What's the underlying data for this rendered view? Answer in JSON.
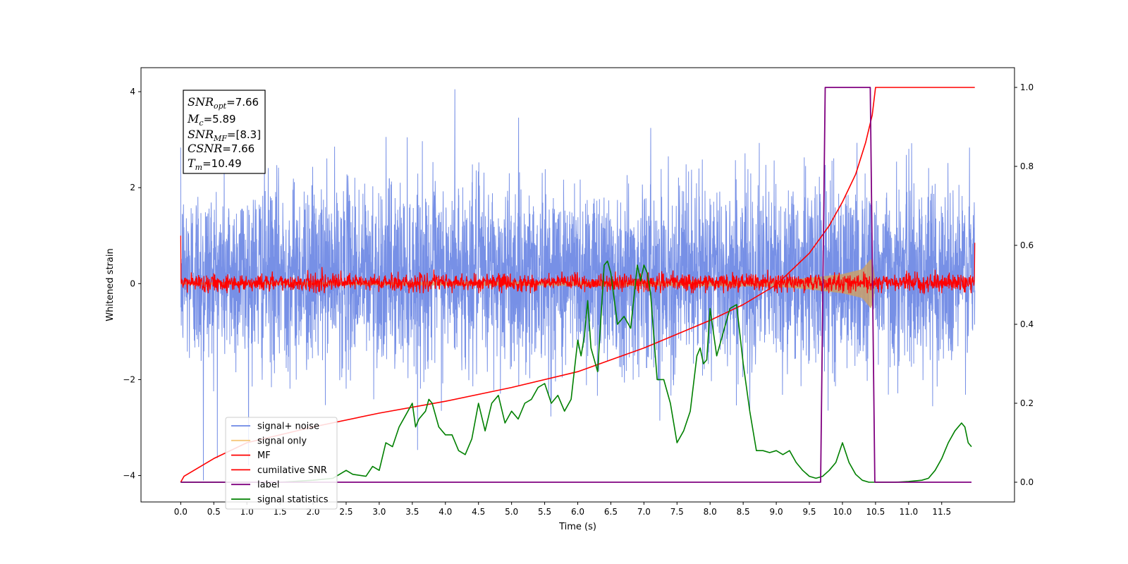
{
  "chart_data": {
    "type": "line",
    "xlabel": "Time (s)",
    "ylabel": "Whitened strain",
    "xlim": [
      -0.6,
      12.6
    ],
    "ylim": [
      -4.55,
      4.5
    ],
    "y2lim": [
      -0.05,
      1.05
    ],
    "x_ticks": [
      "0.0",
      "0.5",
      "1.0",
      "1.5",
      "2.0",
      "2.5",
      "3.0",
      "3.5",
      "4.0",
      "4.5",
      "5.0",
      "5.5",
      "6.0",
      "6.5",
      "7.0",
      "7.5",
      "8.0",
      "8.5",
      "9.0",
      "9.5",
      "10.0",
      "10.5",
      "11.0",
      "11.5"
    ],
    "y_ticks": [
      "4",
      "2",
      "0",
      "−2",
      "−4"
    ],
    "y_tick_values": [
      4,
      2,
      0,
      -2,
      -4
    ],
    "y2_ticks": [
      "1.0",
      "0.8",
      "0.6",
      "0.4",
      "0.2",
      "0.0"
    ],
    "y2_tick_values": [
      1.0,
      0.8,
      0.6,
      0.4,
      0.2,
      0.0
    ],
    "info_box": [
      {
        "base": "SNR",
        "sub": "opt",
        "value": "=7.66"
      },
      {
        "base": "M",
        "sub": "c",
        "value": "=5.89"
      },
      {
        "base": "SNR",
        "sub": "MF",
        "value": "=[8.3]"
      },
      {
        "base": "CSNR",
        "sub": "",
        "value": "=7.66"
      },
      {
        "base": "T",
        "sub": "m",
        "value": "=10.49"
      }
    ],
    "legend": {
      "placement": "lower-left",
      "entries": [
        {
          "label": "signal+ noise",
          "color": "#6b87e4"
        },
        {
          "label": "signal only",
          "color": "#f5c77a"
        },
        {
          "label": "MF",
          "color": "#ff0000"
        },
        {
          "label": "cumilative SNR",
          "color": "#ff0000"
        },
        {
          "label": "label",
          "color": "#800080"
        },
        {
          "label": "signal statistics",
          "color": "#008000"
        }
      ]
    },
    "series": [
      {
        "name": "signal+ noise",
        "color": "#6b87e4",
        "axis": "left",
        "x_range": [
          0.0,
          12.0
        ],
        "typical_range": [
          -2.6,
          2.6
        ],
        "max": 4.05,
        "min": -4.1
      },
      {
        "name": "signal only",
        "color": "#c8a06a",
        "axis": "left",
        "x_range": [
          0.0,
          10.5
        ],
        "envelope": {
          "x": [
            0.0,
            9.0,
            9.5,
            10.0,
            10.3,
            10.45,
            10.5
          ],
          "amp": [
            0.02,
            0.06,
            0.12,
            0.2,
            0.3,
            0.55,
            0.0
          ]
        }
      },
      {
        "name": "MF",
        "color": "#ff0000",
        "axis": "left",
        "x_range": [
          0.0,
          12.0
        ],
        "typical_range": [
          -0.15,
          0.3
        ],
        "start_value": 1.0,
        "end_value": 0.85
      },
      {
        "name": "cumilative SNR",
        "color": "#ff0000",
        "axis": "right",
        "x": [
          0.0,
          0.05,
          0.5,
          1.0,
          2.0,
          3.0,
          4.0,
          5.0,
          6.0,
          7.0,
          8.0,
          8.5,
          9.0,
          9.5,
          9.8,
          10.0,
          10.2,
          10.35,
          10.45,
          10.5,
          12.0
        ],
        "y": [
          0.0,
          0.015,
          0.06,
          0.1,
          0.14,
          0.175,
          0.205,
          0.24,
          0.28,
          0.34,
          0.41,
          0.45,
          0.5,
          0.58,
          0.65,
          0.71,
          0.78,
          0.86,
          0.93,
          1.0,
          1.0
        ]
      },
      {
        "name": "label",
        "color": "#800080",
        "axis": "right",
        "x": [
          0.0,
          9.67,
          9.74,
          10.42,
          10.49,
          11.95
        ],
        "y": [
          0.0,
          0.0,
          1.0,
          1.0,
          0.0,
          0.0
        ]
      },
      {
        "name": "signal statistics",
        "color": "#008000",
        "axis": "right",
        "x": [
          0.0,
          0.5,
          1.0,
          1.5,
          2.0,
          2.3,
          2.5,
          2.6,
          2.8,
          2.9,
          3.0,
          3.1,
          3.2,
          3.3,
          3.4,
          3.5,
          3.55,
          3.6,
          3.7,
          3.75,
          3.8,
          3.9,
          4.0,
          4.1,
          4.2,
          4.3,
          4.4,
          4.5,
          4.6,
          4.7,
          4.8,
          4.9,
          5.0,
          5.1,
          5.2,
          5.3,
          5.4,
          5.5,
          5.6,
          5.7,
          5.8,
          5.9,
          6.0,
          6.05,
          6.1,
          6.15,
          6.2,
          6.3,
          6.4,
          6.45,
          6.5,
          6.6,
          6.7,
          6.8,
          6.9,
          6.95,
          7.0,
          7.05,
          7.1,
          7.2,
          7.3,
          7.4,
          7.5,
          7.6,
          7.7,
          7.8,
          7.85,
          7.9,
          7.95,
          8.0,
          8.1,
          8.2,
          8.3,
          8.4,
          8.5,
          8.6,
          8.7,
          8.8,
          8.9,
          9.0,
          9.1,
          9.2,
          9.3,
          9.4,
          9.5,
          9.6,
          9.7,
          9.8,
          9.9,
          10.0,
          10.1,
          10.2,
          10.3,
          10.4,
          10.5,
          10.6,
          10.8,
          11.0,
          11.2,
          11.3,
          11.4,
          11.5,
          11.55,
          11.6,
          11.7,
          11.8,
          11.85,
          11.9,
          11.95
        ],
        "y": [
          0.0,
          0.0,
          0.0,
          0.0,
          0.005,
          0.01,
          0.03,
          0.02,
          0.015,
          0.04,
          0.03,
          0.1,
          0.09,
          0.14,
          0.17,
          0.2,
          0.14,
          0.16,
          0.18,
          0.21,
          0.2,
          0.14,
          0.12,
          0.12,
          0.08,
          0.07,
          0.11,
          0.2,
          0.13,
          0.2,
          0.22,
          0.15,
          0.18,
          0.16,
          0.2,
          0.21,
          0.24,
          0.25,
          0.2,
          0.22,
          0.18,
          0.21,
          0.36,
          0.32,
          0.37,
          0.46,
          0.34,
          0.28,
          0.55,
          0.56,
          0.53,
          0.4,
          0.42,
          0.39,
          0.55,
          0.51,
          0.55,
          0.53,
          0.48,
          0.26,
          0.26,
          0.2,
          0.1,
          0.13,
          0.18,
          0.32,
          0.34,
          0.3,
          0.31,
          0.44,
          0.32,
          0.38,
          0.44,
          0.45,
          0.3,
          0.18,
          0.08,
          0.08,
          0.075,
          0.08,
          0.07,
          0.08,
          0.05,
          0.03,
          0.015,
          0.01,
          0.015,
          0.03,
          0.05,
          0.1,
          0.05,
          0.02,
          0.005,
          0.0,
          0.0,
          0.0,
          0.0,
          0.002,
          0.005,
          0.01,
          0.03,
          0.06,
          0.08,
          0.1,
          0.13,
          0.15,
          0.14,
          0.1,
          0.09
        ]
      }
    ]
  }
}
